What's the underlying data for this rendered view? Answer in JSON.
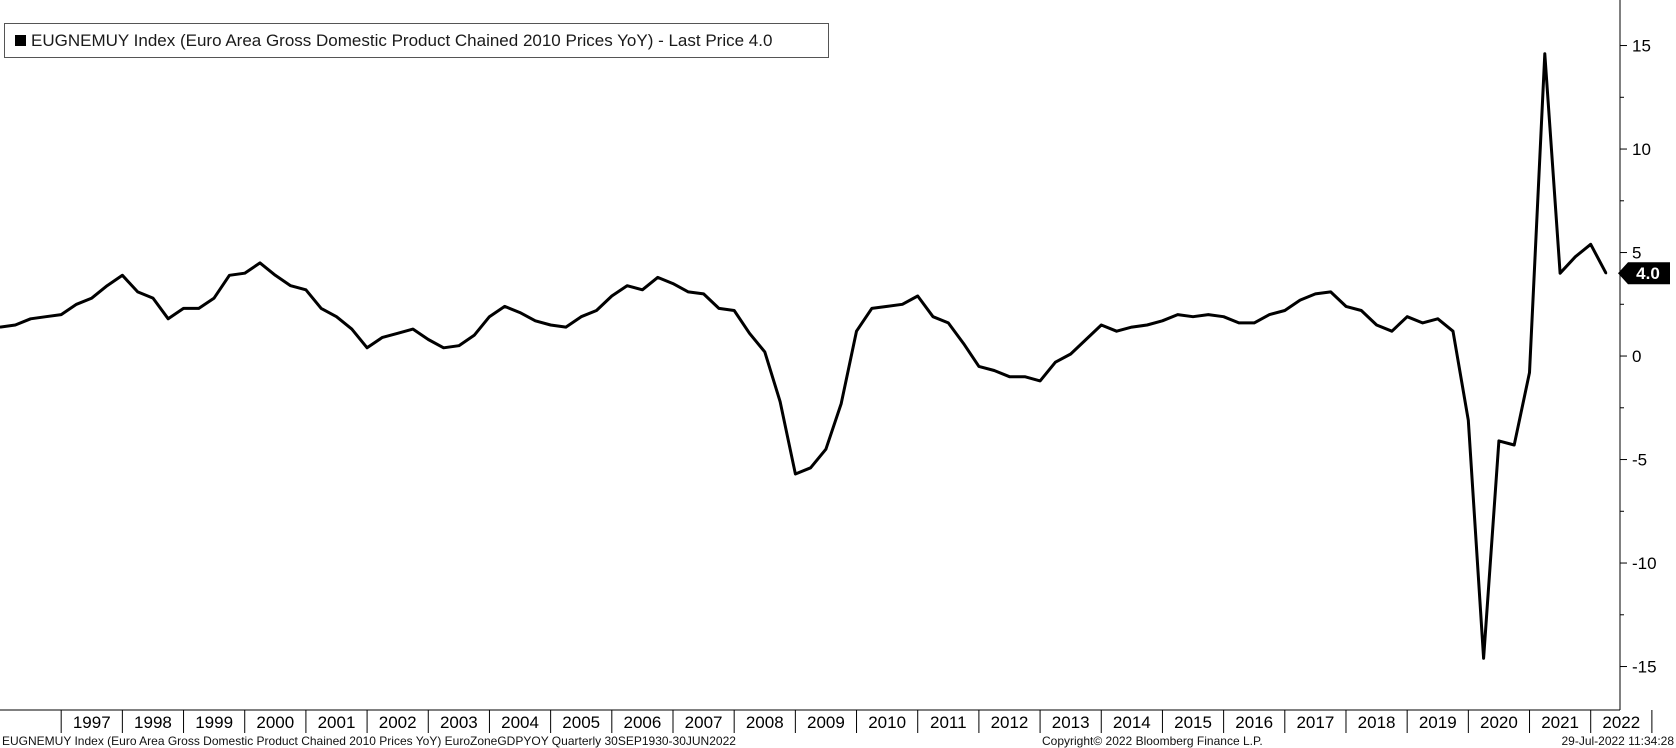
{
  "legend": {
    "text": "EUGNEMUY Index (Euro Area Gross Domestic Product Chained 2010 Prices YoY) - Last Price 4.0"
  },
  "footer": {
    "left": "EUGNEMUY Index (Euro Area Gross Domestic Product Chained 2010 Prices YoY) EuroZoneGDPYOY  Quarterly 30SEP1930-30JUN2022",
    "center": "Copyright© 2022 Bloomberg Finance L.P.",
    "right": "29-Jul-2022 11:34:28"
  },
  "colors": {
    "line": "#000000",
    "axis": "#000000",
    "background": "#ffffff"
  },
  "chart_data": {
    "type": "line",
    "title": "",
    "series": [
      {
        "name": "EUGNEMUY Index (Euro Area Gross Domestic Product Chained 2010 Prices YoY)",
        "x": [
          "1996Q1",
          "1996Q2",
          "1996Q3",
          "1996Q4",
          "1997Q1",
          "1997Q2",
          "1997Q3",
          "1997Q4",
          "1998Q1",
          "1998Q2",
          "1998Q3",
          "1998Q4",
          "1999Q1",
          "1999Q2",
          "1999Q3",
          "1999Q4",
          "2000Q1",
          "2000Q2",
          "2000Q3",
          "2000Q4",
          "2001Q1",
          "2001Q2",
          "2001Q3",
          "2001Q4",
          "2002Q1",
          "2002Q2",
          "2002Q3",
          "2002Q4",
          "2003Q1",
          "2003Q2",
          "2003Q3",
          "2003Q4",
          "2004Q1",
          "2004Q2",
          "2004Q3",
          "2004Q4",
          "2005Q1",
          "2005Q2",
          "2005Q3",
          "2005Q4",
          "2006Q1",
          "2006Q2",
          "2006Q3",
          "2006Q4",
          "2007Q1",
          "2007Q2",
          "2007Q3",
          "2007Q4",
          "2008Q1",
          "2008Q2",
          "2008Q3",
          "2008Q4",
          "2009Q1",
          "2009Q2",
          "2009Q3",
          "2009Q4",
          "2010Q1",
          "2010Q2",
          "2010Q3",
          "2010Q4",
          "2011Q1",
          "2011Q2",
          "2011Q3",
          "2011Q4",
          "2012Q1",
          "2012Q2",
          "2012Q3",
          "2012Q4",
          "2013Q1",
          "2013Q2",
          "2013Q3",
          "2013Q4",
          "2014Q1",
          "2014Q2",
          "2014Q3",
          "2014Q4",
          "2015Q1",
          "2015Q2",
          "2015Q3",
          "2015Q4",
          "2016Q1",
          "2016Q2",
          "2016Q3",
          "2016Q4",
          "2017Q1",
          "2017Q2",
          "2017Q3",
          "2017Q4",
          "2018Q1",
          "2018Q2",
          "2018Q3",
          "2018Q4",
          "2019Q1",
          "2019Q2",
          "2019Q3",
          "2019Q4",
          "2020Q1",
          "2020Q2",
          "2020Q3",
          "2020Q4",
          "2021Q1",
          "2021Q2",
          "2021Q3",
          "2021Q4",
          "2022Q1",
          "2022Q2"
        ],
        "values": [
          1.4,
          1.5,
          1.8,
          1.9,
          2.0,
          2.5,
          2.8,
          3.4,
          3.9,
          3.1,
          2.8,
          1.8,
          2.3,
          2.3,
          2.8,
          3.9,
          4.0,
          4.5,
          3.9,
          3.4,
          3.2,
          2.3,
          1.9,
          1.3,
          0.4,
          0.9,
          1.1,
          1.3,
          0.8,
          0.4,
          0.5,
          1.0,
          1.9,
          2.4,
          2.1,
          1.7,
          1.5,
          1.4,
          1.9,
          2.2,
          2.9,
          3.4,
          3.2,
          3.8,
          3.5,
          3.1,
          3.0,
          2.3,
          2.2,
          1.1,
          0.2,
          -2.2,
          -5.7,
          -5.4,
          -4.5,
          -2.3,
          1.2,
          2.3,
          2.4,
          2.5,
          2.9,
          1.9,
          1.6,
          0.6,
          -0.5,
          -0.7,
          -1.0,
          -1.0,
          -1.2,
          -0.3,
          0.1,
          0.8,
          1.5,
          1.2,
          1.4,
          1.5,
          1.7,
          2.0,
          1.9,
          2.0,
          1.9,
          1.6,
          1.6,
          2.0,
          2.2,
          2.7,
          3.0,
          3.1,
          2.4,
          2.2,
          1.5,
          1.2,
          1.9,
          1.6,
          1.8,
          1.2,
          -3.1,
          -14.6,
          -4.1,
          -4.3,
          -0.8,
          14.6,
          4.0,
          4.8,
          5.4,
          4.0
        ]
      }
    ],
    "x_tick_labels": [
      "1997",
      "1998",
      "1999",
      "2000",
      "2001",
      "2002",
      "2003",
      "2004",
      "2005",
      "2006",
      "2007",
      "2008",
      "2009",
      "2010",
      "2011",
      "2012",
      "2013",
      "2014",
      "2015",
      "2016",
      "2017",
      "2018",
      "2019",
      "2020",
      "2021",
      "2022"
    ],
    "y_ticks": [
      15,
      10,
      5,
      0,
      -5,
      -10,
      -15
    ],
    "y_tick_labels": [
      "15",
      "10",
      "5",
      "0",
      "-5",
      "-10",
      "-15"
    ],
    "ylim": [
      -17.1,
      17.2
    ],
    "last_value_label": "4.0",
    "grid": false,
    "legend_position": "top-left",
    "y_axis_position": "right"
  }
}
